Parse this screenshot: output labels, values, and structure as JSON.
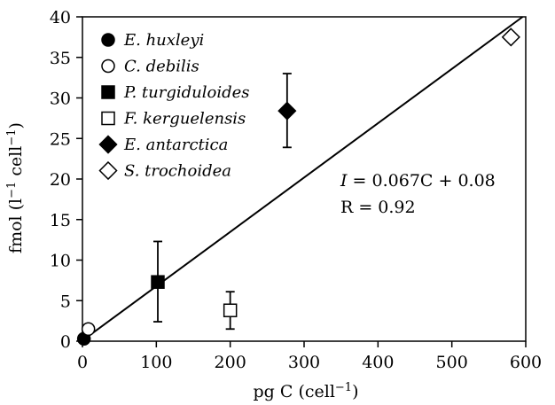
{
  "chart_data": {
    "type": "scatter",
    "xlabel_parts": [
      "pg C (cell",
      "−1",
      ")"
    ],
    "ylabel_parts": [
      "fmol (l",
      "−1",
      " cell",
      "−1",
      ")"
    ],
    "xlim": [
      0,
      600
    ],
    "ylim": [
      0,
      40
    ],
    "x_ticks": [
      0,
      100,
      200,
      300,
      400,
      500,
      600
    ],
    "y_ticks": [
      0,
      5,
      10,
      15,
      20,
      25,
      30,
      35,
      40
    ],
    "x_tick_labels": [
      "0",
      "100",
      "200",
      "300",
      "400",
      "500",
      "600"
    ],
    "y_tick_labels": [
      "0",
      "5",
      "10",
      "15",
      "20",
      "25",
      "30",
      "35",
      "40"
    ],
    "grid": false,
    "legend_position": "top-left",
    "series": [
      {
        "name": "E. huxleyi",
        "marker": "circle",
        "filled": true,
        "x": 2,
        "y": 0.3,
        "err": null
      },
      {
        "name": "C. debilis",
        "marker": "circle",
        "filled": false,
        "x": 8,
        "y": 1.5,
        "err": null
      },
      {
        "name": "P. turgiduloides",
        "marker": "square",
        "filled": true,
        "x": 102,
        "y": 7.3,
        "err": [
          2.4,
          12.3
        ]
      },
      {
        "name": "F. kerguelensis",
        "marker": "square",
        "filled": false,
        "x": 200,
        "y": 3.8,
        "err": [
          1.5,
          6.1
        ]
      },
      {
        "name": "E. antarctica",
        "marker": "diamond",
        "filled": true,
        "x": 277,
        "y": 28.4,
        "err": [
          23.9,
          33.0
        ]
      },
      {
        "name": "S. trochoidea",
        "marker": "diamond",
        "filled": false,
        "x": 580,
        "y": 37.5,
        "err": null
      }
    ],
    "regression": {
      "slope": 0.067,
      "intercept": 0.08,
      "x_range": [
        0,
        600
      ]
    },
    "annotations": {
      "equation_lhs": "I",
      "equation_rhs": " = 0.067C + 0.08",
      "r_text": "R = 0.92"
    }
  }
}
